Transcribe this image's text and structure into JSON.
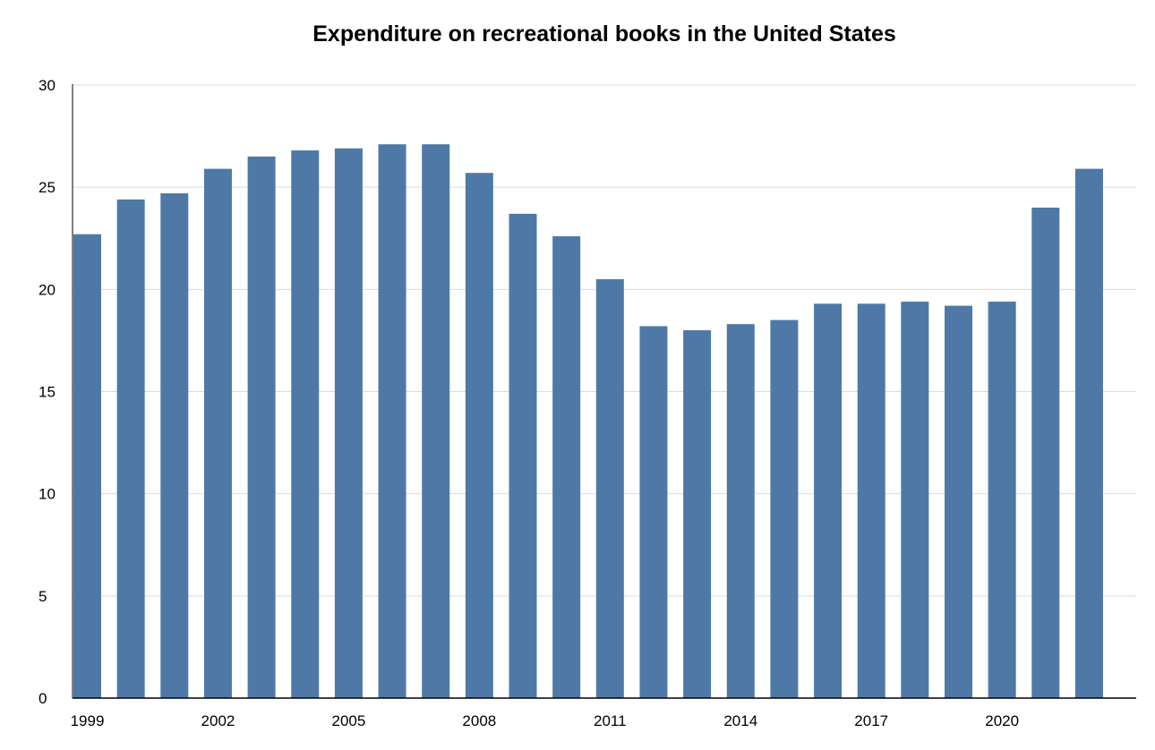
{
  "chart_data": {
    "type": "bar",
    "title": "Expenditure on recreational books in the United States",
    "xlabel": "",
    "ylabel": "",
    "ylim": [
      0,
      30
    ],
    "yticks": [
      "0",
      "5",
      "10",
      "15",
      "20",
      "25",
      "30"
    ],
    "xtick_labels": [
      "1999",
      "2002",
      "2005",
      "2008",
      "2011",
      "2014",
      "2017",
      "2020"
    ],
    "grid": "horizontal",
    "categories": [
      "1999",
      "2000",
      "2001",
      "2002",
      "2003",
      "2004",
      "2005",
      "2006",
      "2007",
      "2008",
      "2009",
      "2010",
      "2011",
      "2012",
      "2013",
      "2014",
      "2015",
      "2016",
      "2017",
      "2018",
      "2019",
      "2020",
      "2021",
      "2022"
    ],
    "values": [
      22.7,
      24.4,
      24.7,
      25.9,
      26.5,
      26.8,
      26.9,
      27.1,
      27.1,
      25.7,
      23.7,
      22.6,
      20.5,
      18.2,
      18.0,
      18.3,
      18.5,
      19.3,
      19.3,
      19.4,
      19.2,
      19.4,
      24.0,
      25.9
    ],
    "bar_color": "#4e79a7",
    "grid_color": "#dcdcdc",
    "axis_color": "#000000"
  }
}
